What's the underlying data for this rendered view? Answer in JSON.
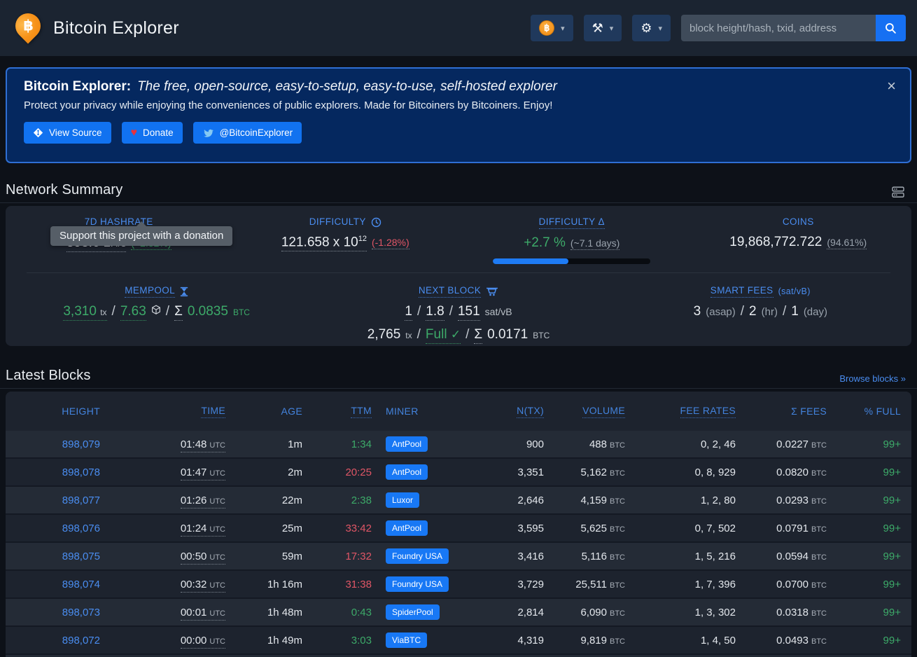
{
  "navbar": {
    "title": "Bitcoin Explorer",
    "logo_symbol": "฿",
    "tools_glyph": "⚒",
    "gear_glyph": "⚙",
    "caret_glyph": "▾",
    "search": {
      "placeholder": "block height/hash, txid, address"
    }
  },
  "banner": {
    "title_bold": "Bitcoin Explorer:",
    "title_italic": "The free, open-source, easy-to-setup, easy-to-use, self-hosted explorer",
    "subtitle": "Protect your privacy while enjoying the conveniences of public explorers. Made for Bitcoiners by Bitcoiners. Enjoy!",
    "close_glyph": "×",
    "buttons": {
      "view_source": "View Source",
      "donate": "Donate",
      "donate_heart": "♥",
      "twitter": "@BitcoinExplorer"
    },
    "tooltip": "Support this project with a donation"
  },
  "network_summary": {
    "heading": "Network Summary",
    "hashrate": {
      "label": "7D HASHRATE",
      "value": "898.6",
      "unit": "EH/s",
      "change": "(+2.32%)"
    },
    "difficulty": {
      "label": "DIFFICULTY",
      "value": "121.658 x 10",
      "exp": "12",
      "change": "(-1.28%)"
    },
    "difficulty_delta": {
      "label": "DIFFICULTY Δ",
      "value": "+2.7 %",
      "eta": "(~7.1 days)",
      "progress_pct": 48
    },
    "coins": {
      "label": "COINS",
      "value": "19,868,772.722",
      "pct": "(94.61%)"
    },
    "mempool": {
      "label": "MEMPOOL",
      "tx_count": "3,310",
      "tx_unit": "tx",
      "slash": "/",
      "size": "7.63",
      "sum_label": "Σ",
      "fees": "0.0835",
      "fees_unit": "BTC"
    },
    "next_block": {
      "label": "NEXT BLOCK",
      "fee_min": "1",
      "fee_med": "1.8",
      "fee_max": "151",
      "fee_unit": "sat/vB",
      "slash": "/",
      "tx_count": "2,765",
      "tx_unit": "tx",
      "full_label": "Full",
      "check_glyph": "✓",
      "sum_label": "Σ",
      "fees": "0.0171",
      "fees_unit": "BTC"
    },
    "smart_fees": {
      "label": "SMART FEES",
      "unit": "(sat/vB)",
      "slash": "/",
      "asap": "3",
      "asap_label": "(asap)",
      "hr": "2",
      "hr_label": "(hr)",
      "day": "1",
      "day_label": "(day)"
    }
  },
  "latest_blocks": {
    "heading": "Latest Blocks",
    "browse_link": "Browse blocks »",
    "columns": [
      "HEIGHT",
      "TIME",
      "AGE",
      "TTM",
      "MINER",
      "N(TX)",
      "VOLUME",
      "FEE RATES",
      "Σ FEES",
      "% FULL"
    ],
    "units": {
      "time": "UTC",
      "volume": "BTC",
      "fees": "BTC"
    },
    "rows": [
      {
        "height": "898,079",
        "time": "01:48",
        "age": "1m",
        "ttm": "1:34",
        "ttm_color": "green",
        "miner": "AntPool",
        "ntx": "900",
        "volume": "488",
        "fee_rates": "0, 2, 46",
        "fees": "0.0227",
        "full": "99+"
      },
      {
        "height": "898,078",
        "time": "01:47",
        "age": "2m",
        "ttm": "20:25",
        "ttm_color": "red",
        "miner": "AntPool",
        "ntx": "3,351",
        "volume": "5,162",
        "fee_rates": "0, 8, 929",
        "fees": "0.0820",
        "full": "99+"
      },
      {
        "height": "898,077",
        "time": "01:26",
        "age": "22m",
        "ttm": "2:38",
        "ttm_color": "green",
        "miner": "Luxor",
        "ntx": "2,646",
        "volume": "4,159",
        "fee_rates": "1, 2, 80",
        "fees": "0.0293",
        "full": "99+"
      },
      {
        "height": "898,076",
        "time": "01:24",
        "age": "25m",
        "ttm": "33:42",
        "ttm_color": "red",
        "miner": "AntPool",
        "ntx": "3,595",
        "volume": "5,625",
        "fee_rates": "0, 7, 502",
        "fees": "0.0791",
        "full": "99+"
      },
      {
        "height": "898,075",
        "time": "00:50",
        "age": "59m",
        "ttm": "17:32",
        "ttm_color": "red",
        "miner": "Foundry USA",
        "ntx": "3,416",
        "volume": "5,116",
        "fee_rates": "1, 5, 216",
        "fees": "0.0594",
        "full": "99+"
      },
      {
        "height": "898,074",
        "time": "00:32",
        "age": "1h 16m",
        "ttm": "31:38",
        "ttm_color": "red",
        "miner": "Foundry USA",
        "ntx": "3,729",
        "volume": "25,511",
        "fee_rates": "1, 7, 396",
        "fees": "0.0700",
        "full": "99+"
      },
      {
        "height": "898,073",
        "time": "00:01",
        "age": "1h 48m",
        "ttm": "0:43",
        "ttm_color": "green",
        "miner": "SpiderPool",
        "ntx": "2,814",
        "volume": "6,090",
        "fee_rates": "1, 3, 302",
        "fees": "0.0318",
        "full": "99+"
      },
      {
        "height": "898,072",
        "time": "00:00",
        "age": "1h 49m",
        "ttm": "3:03",
        "ttm_color": "green",
        "miner": "ViaBTC",
        "ntx": "4,319",
        "volume": "9,819",
        "fee_rates": "1, 4, 50",
        "fees": "0.0493",
        "full": "99+"
      }
    ]
  },
  "colors": {
    "accent_blue": "#1878f5",
    "link_blue": "#4a8df0",
    "green": "#3daa69",
    "red": "#e05666",
    "bitcoin_orange": "#f7931a",
    "banner_bg": "#05285f",
    "navbar_bg": "#1b2431",
    "card_bg": "#1d232e"
  }
}
